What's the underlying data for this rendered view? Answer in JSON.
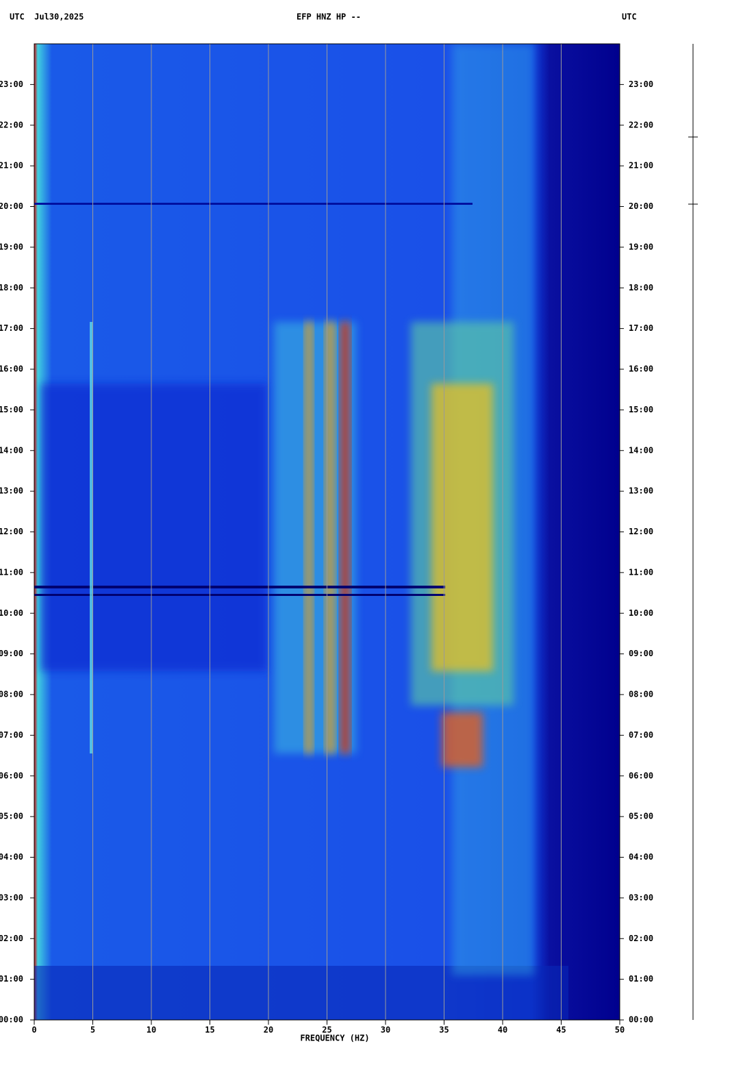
{
  "chart_data": {
    "type": "spectrogram",
    "header_left": "UTC  Jul30,2025",
    "title": "EFP HNZ HP --",
    "header_right": "UTC",
    "x_label": "FREQUENCY (HZ)",
    "xlim": [
      0,
      50
    ],
    "xticks": [
      0,
      5,
      10,
      15,
      20,
      25,
      30,
      35,
      40,
      45,
      50
    ],
    "ylim": [
      0,
      24
    ],
    "yticks": [
      {
        "value": 0,
        "label": "00:00"
      },
      {
        "value": 1,
        "label": "01:00"
      },
      {
        "value": 2,
        "label": "02:00"
      },
      {
        "value": 3,
        "label": "03:00"
      },
      {
        "value": 4,
        "label": "04:00"
      },
      {
        "value": 5,
        "label": "05:00"
      },
      {
        "value": 6,
        "label": "06:00"
      },
      {
        "value": 7,
        "label": "07:00"
      },
      {
        "value": 8,
        "label": "08:00"
      },
      {
        "value": 9,
        "label": "09:00"
      },
      {
        "value": 10,
        "label": "10:00"
      },
      {
        "value": 11,
        "label": "11:00"
      },
      {
        "value": 12,
        "label": "12:00"
      },
      {
        "value": 13,
        "label": "13:00"
      },
      {
        "value": 14,
        "label": "14:00"
      },
      {
        "value": 15,
        "label": "15:00"
      },
      {
        "value": 16,
        "label": "16:00"
      },
      {
        "value": 17,
        "label": "17:00"
      },
      {
        "value": 18,
        "label": "18:00"
      },
      {
        "value": 19,
        "label": "19:00"
      },
      {
        "value": 20,
        "label": "20:00"
      },
      {
        "value": 21,
        "label": "21:00"
      },
      {
        "value": 22,
        "label": "22:00"
      },
      {
        "value": 23,
        "label": "23:00"
      }
    ],
    "grid": true
  }
}
